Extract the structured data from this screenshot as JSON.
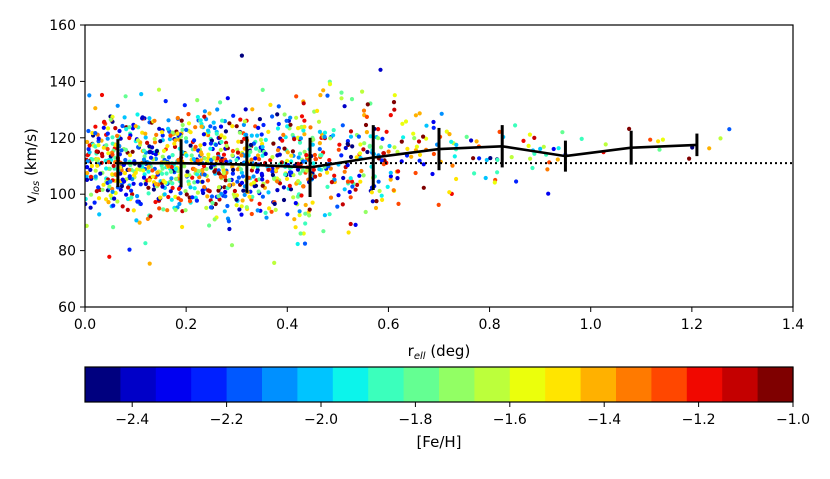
{
  "chart_data": {
    "type": "scatter",
    "xlabel": {
      "main": "r",
      "sub": "ell",
      "rest": " (deg)"
    },
    "ylabel": {
      "main": "v",
      "sub": "los",
      "rest": " (km/s)"
    },
    "xlim": [
      0.0,
      1.4
    ],
    "ylim": [
      60,
      160
    ],
    "xticks": [
      "0.0",
      "0.2",
      "0.4",
      "0.6",
      "0.8",
      "1.0",
      "1.2",
      "1.4"
    ],
    "yticks": [
      "60",
      "80",
      "100",
      "120",
      "140",
      "160"
    ],
    "reference_line": {
      "y": 111,
      "style": "dotted"
    },
    "binned_mean": {
      "x": [
        0.065,
        0.19,
        0.32,
        0.445,
        0.57,
        0.7,
        0.825,
        0.95,
        1.08,
        1.21
      ],
      "y": [
        111,
        111,
        110.5,
        109.5,
        113,
        116,
        117,
        113.5,
        116.5,
        117.5
      ],
      "err": [
        8.5,
        8.5,
        10,
        10.5,
        11.5,
        7.5,
        7.5,
        5.5,
        6,
        4
      ]
    },
    "colorbar": {
      "label": "[Fe/H]",
      "range": [
        -2.5,
        -1.0
      ],
      "ticks": [
        "−2.4",
        "−2.2",
        "−2.0",
        "−1.8",
        "−1.6",
        "−1.4",
        "−1.2",
        "−1.0"
      ],
      "tick_values": [
        -2.4,
        -2.2,
        -2.0,
        -1.8,
        -1.6,
        -1.4,
        -1.2,
        -1.0
      ],
      "colors": [
        "#00007f",
        "#0000c8",
        "#0000f1",
        "#0020ff",
        "#0058ff",
        "#0090ff",
        "#00c4ff",
        "#0cf4eb",
        "#3bffbc",
        "#64ff92",
        "#92ff64",
        "#bcff3b",
        "#ebff0c",
        "#ffe500",
        "#ffb100",
        "#ff7a00",
        "#ff4700",
        "#f10800",
        "#c40000",
        "#7f0000"
      ]
    },
    "points": {
      "seed": 20240611,
      "clusters": [
        {
          "count": 620,
          "x_min": 0.0,
          "x_max": 0.28,
          "y_mean": 111,
          "y_sd": 9.5
        },
        {
          "count": 320,
          "x_min": 0.28,
          "x_max": 0.45,
          "y_mean": 110,
          "y_sd": 10.5
        },
        {
          "count": 170,
          "x_min": 0.45,
          "x_max": 0.62,
          "y_mean": 112,
          "y_sd": 11
        },
        {
          "count": 60,
          "x_min": 0.62,
          "x_max": 0.82,
          "y_mean": 116,
          "y_sd": 8
        },
        {
          "count": 24,
          "x_min": 0.82,
          "x_max": 1.0,
          "y_mean": 115,
          "y_sd": 6.5
        },
        {
          "count": 12,
          "x_min": 1.0,
          "x_max": 1.28,
          "y_mean": 117,
          "y_sd": 5
        }
      ],
      "feh_range": [
        -2.5,
        -1.0
      ]
    }
  }
}
